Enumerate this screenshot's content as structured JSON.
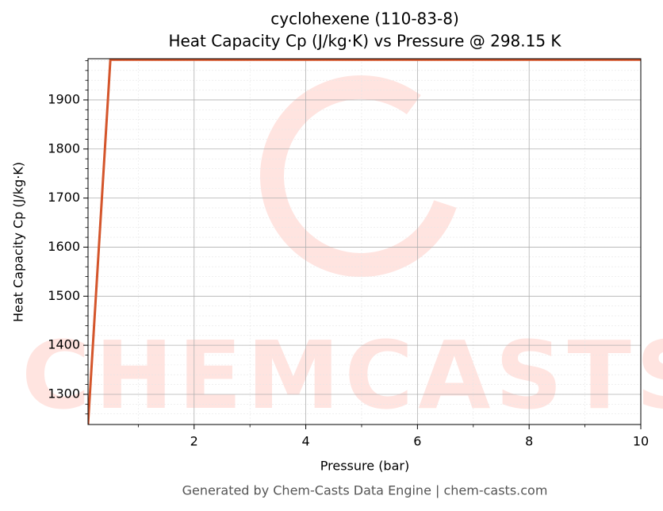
{
  "chart_data": {
    "type": "line",
    "title": "cyclohexene (110-83-8)",
    "subtitle": "Heat Capacity Cp (J/kg·K) vs Pressure @ 298.15 K",
    "x_label": "Pressure (bar)",
    "y_label": "Heat Capacity Cp (J/kg·K)",
    "footer": "Generated by Chem-Casts Data Engine | chem-casts.com",
    "watermark": "CHEMCASTS",
    "x": [
      0.1,
      0.5,
      10
    ],
    "series": [
      {
        "name": "Cp",
        "color": "#d4552b",
        "values": [
          1238.5,
          1982,
          1982
        ]
      }
    ],
    "xlim": [
      0.1,
      10
    ],
    "ylim": [
      1238.5,
      1984
    ],
    "xticks": [
      2,
      4,
      6,
      8,
      10
    ],
    "yticks": [
      1300,
      1400,
      1500,
      1600,
      1700,
      1800,
      1900
    ],
    "xminorticks": [
      1,
      3,
      5,
      7,
      9
    ],
    "yminorticks": [
      1260,
      1280,
      1320,
      1340,
      1360,
      1380,
      1420,
      1440,
      1460,
      1480,
      1520,
      1540,
      1560,
      1580,
      1620,
      1640,
      1660,
      1680,
      1720,
      1740,
      1760,
      1780,
      1820,
      1840,
      1860,
      1880,
      1920,
      1940,
      1960,
      1980
    ],
    "grid": true
  }
}
